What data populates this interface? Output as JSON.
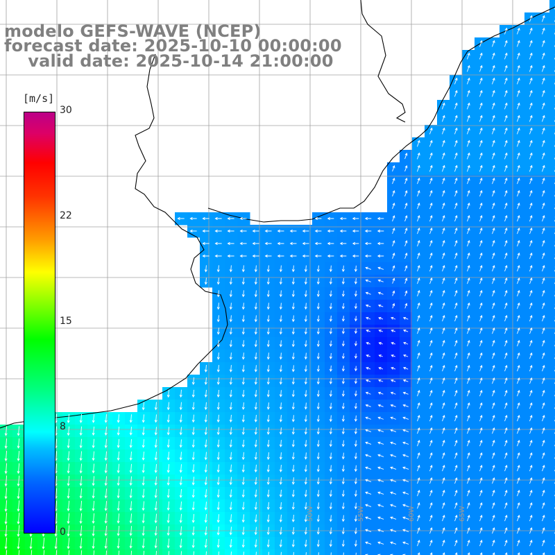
{
  "title": {
    "line1": "modelo GEFS-WAVE (NCEP)",
    "line2": "forecast date: 2025-10-10 00:00:00",
    "line3": "    valid date: 2025-10-14 21:00:00"
  },
  "colorbar": {
    "unit": "[m/s]",
    "min": 0,
    "max": 30,
    "ticks": [
      "30",
      "22",
      "15",
      "8",
      "0"
    ],
    "tick_values": [
      30,
      22,
      15,
      8,
      0
    ]
  },
  "map": {
    "field": "wind speed",
    "units": "m/s",
    "lon_labels": [
      "65W",
      "60W",
      "55W",
      "50W"
    ],
    "colors": {
      "land": "#ffffff",
      "coast": "#000000",
      "grid": "#a0a0a0",
      "arrows": "#ffffff"
    }
  }
}
